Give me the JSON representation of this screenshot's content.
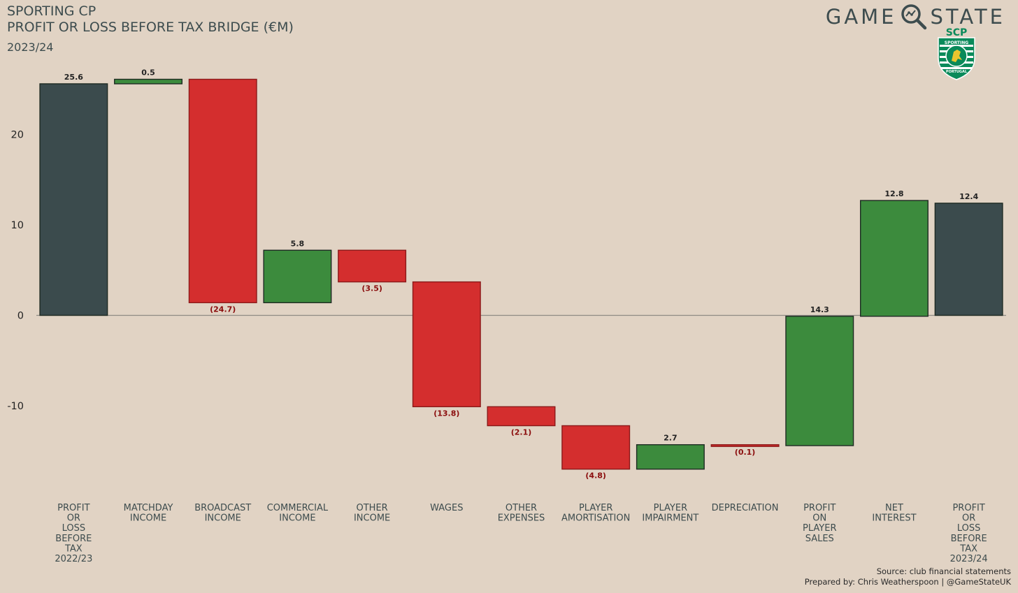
{
  "header": {
    "title_line1": "SPORTING CP",
    "title_line2": "PROFIT OR LOSS BEFORE TAX BRIDGE (€M)",
    "subtitle": "2023/24"
  },
  "brand": {
    "word_left": "GAME",
    "word_right": "STATE",
    "logo_icon": "magnifier-icon",
    "crest_letters": "SCP",
    "crest_text_top": "SPORTING",
    "crest_text_bottom": "PORTUGAL"
  },
  "footer": {
    "source": "Source: club financial statements",
    "credit": "Prepared by: Chris Weatherspoon | @GameStateUK"
  },
  "colors": {
    "total": "#3b4b4d",
    "increase": "#3c8b3d",
    "decrease": "#d42e2e",
    "decrease_label": "#8b0d0d",
    "increase_label": "#222222",
    "background": "#e1d3c4"
  },
  "chart_data": {
    "type": "waterfall",
    "categories": [
      "PROFIT\nOR\nLOSS\nBEFORE\nTAX\n2022/23",
      "MATCHDAY\nINCOME",
      "BROADCAST\nINCOME",
      "COMMERCIAL\nINCOME",
      "OTHER\nINCOME",
      "WAGES",
      "OTHER\nEXPENSES",
      "PLAYER\nAMORTISATION",
      "PLAYER\nIMPAIRMENT",
      "DEPRECIATION",
      "PROFIT\nON\nPLAYER\nSALES",
      "NET\nINTEREST",
      "PROFIT\nOR\nLOSS\nBEFORE\nTAX\n2023/24"
    ],
    "values": [
      25.6,
      0.5,
      -24.7,
      5.8,
      -3.5,
      -13.8,
      -2.1,
      -4.8,
      2.7,
      -0.1,
      14.3,
      12.8,
      12.4
    ],
    "kinds": [
      "total",
      "increase",
      "decrease",
      "increase",
      "decrease",
      "decrease",
      "decrease",
      "decrease",
      "increase",
      "decrease",
      "increase",
      "increase",
      "total"
    ],
    "data_labels": [
      "25.6",
      "0.5",
      "(24.7)",
      "5.8",
      "(3.5)",
      "(13.8)",
      "(2.1)",
      "(4.8)",
      "2.7",
      "(0.1)",
      "14.3",
      "12.8",
      "12.4"
    ],
    "yticks": [
      20,
      10,
      0,
      -10
    ],
    "ylim": [
      -19,
      27.5
    ],
    "zero_line": true,
    "grid": false,
    "legend": "none"
  }
}
